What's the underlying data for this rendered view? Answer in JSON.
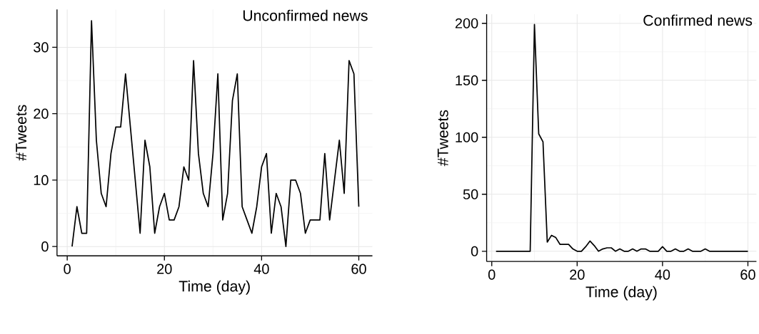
{
  "chart_data": [
    {
      "type": "line",
      "title": "Unconfirmed news",
      "xlabel": "Time (day)",
      "ylabel": "#Tweets",
      "color": "#000000",
      "grid": true,
      "marker": "none",
      "line_style": "solid",
      "x": [
        1,
        2,
        3,
        4,
        5,
        6,
        7,
        8,
        9,
        10,
        11,
        12,
        13,
        14,
        15,
        16,
        17,
        18,
        19,
        20,
        21,
        22,
        23,
        24,
        25,
        26,
        27,
        28,
        29,
        30,
        31,
        32,
        33,
        34,
        35,
        36,
        37,
        38,
        39,
        40,
        41,
        42,
        43,
        44,
        45,
        46,
        47,
        48,
        49,
        50,
        51,
        52,
        53,
        54,
        55,
        56,
        57,
        58,
        59,
        60
      ],
      "values": [
        0,
        6,
        2,
        2,
        34,
        16,
        8,
        6,
        14,
        18,
        18,
        26,
        18,
        10,
        2,
        16,
        12,
        2,
        6,
        8,
        4,
        4,
        6,
        12,
        10,
        28,
        14,
        8,
        6,
        14,
        26,
        4,
        8,
        22,
        26,
        6,
        4,
        2,
        6,
        12,
        14,
        2,
        8,
        6,
        0,
        10,
        10,
        8,
        2,
        4,
        4,
        4,
        14,
        4,
        10,
        16,
        8,
        28,
        26,
        6
      ],
      "xlim": [
        -2.1,
        62.8
      ],
      "ylim": [
        -1.4,
        35.7
      ],
      "xticks": [
        0,
        20,
        40,
        60
      ],
      "yticks": [
        0,
        10,
        20,
        30
      ]
    },
    {
      "type": "line",
      "title": "Confirmed news",
      "xlabel": "Time (day)",
      "ylabel": "#Tweets",
      "color": "#000000",
      "grid": true,
      "marker": "none",
      "line_style": "solid",
      "x": [
        1,
        2,
        3,
        4,
        5,
        6,
        7,
        8,
        9,
        10,
        11,
        12,
        13,
        14,
        15,
        16,
        17,
        18,
        19,
        20,
        21,
        22,
        23,
        24,
        25,
        26,
        27,
        28,
        29,
        30,
        31,
        32,
        33,
        34,
        35,
        36,
        37,
        38,
        39,
        40,
        41,
        42,
        43,
        44,
        45,
        46,
        47,
        48,
        49,
        50,
        51,
        52,
        53,
        54,
        55,
        56,
        57,
        58,
        59,
        60
      ],
      "values": [
        0,
        0,
        0,
        0,
        0,
        0,
        0,
        0,
        0,
        199,
        103,
        96,
        8,
        14,
        12,
        6,
        6,
        6,
        2,
        0,
        0,
        4,
        9,
        5,
        0,
        2,
        3,
        3,
        0,
        2,
        0,
        0,
        2,
        0,
        2,
        2,
        0,
        0,
        0,
        4,
        0,
        0,
        2,
        0,
        0,
        2,
        0,
        0,
        0,
        2,
        0,
        0,
        0,
        0,
        0,
        0,
        0,
        0,
        0,
        0
      ],
      "xlim": [
        -1.2,
        62
      ],
      "ylim": [
        -9,
        208
      ],
      "xticks": [
        0,
        20,
        40,
        60
      ],
      "yticks": [
        0,
        50,
        100,
        150,
        200
      ]
    }
  ]
}
